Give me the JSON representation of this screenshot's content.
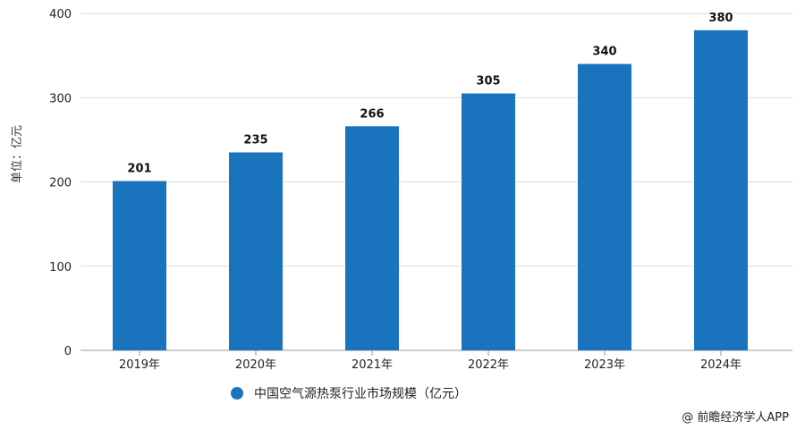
{
  "chart_data": {
    "type": "bar",
    "categories": [
      "2019年",
      "2020年",
      "2021年",
      "2022年",
      "2023年",
      "2024年"
    ],
    "series": [
      {
        "name": "中国空气源热泵行业市场规模（亿元）",
        "values": [
          201,
          235,
          266,
          305,
          340,
          380
        ]
      }
    ],
    "ylabel": "单位：亿元",
    "xlabel": "",
    "ylim": [
      0,
      400
    ],
    "yticks": [
      0,
      100,
      200,
      300,
      400
    ],
    "grid": true,
    "legend": "bottom",
    "bar_color": "#1a73bd"
  },
  "source": "@ 前瞻经济学人APP"
}
